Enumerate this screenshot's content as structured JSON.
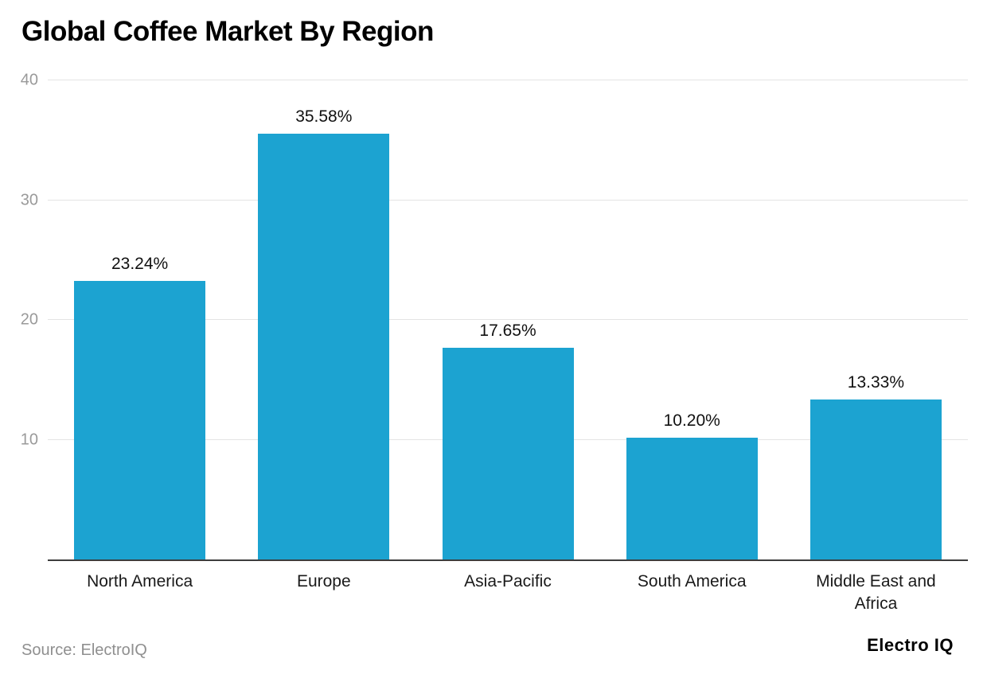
{
  "chart_data": {
    "type": "bar",
    "title": "Global Coffee Market By Region",
    "categories": [
      "North America",
      "Europe",
      "Asia-Pacific",
      "South America",
      "Middle East and Africa"
    ],
    "values": [
      23.24,
      35.58,
      17.65,
      10.2,
      13.33
    ],
    "value_labels": [
      "23.24%",
      "35.58%",
      "17.65%",
      "10.20%",
      "13.33%"
    ],
    "xlabel": "",
    "ylabel": "",
    "ylim": [
      0,
      40
    ],
    "y_ticks": [
      10,
      20,
      30,
      40
    ],
    "grid": "horizontal",
    "legend": "none",
    "bar_color": "#1CA3D1"
  },
  "footer": {
    "source": "Source: ElectroIQ",
    "brand": "Electro IQ"
  }
}
